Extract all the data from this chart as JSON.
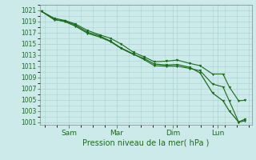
{
  "xlabel": "Pression niveau de la mer( hPa )",
  "bg_color": "#cceaea",
  "grid_color": "#aad4d4",
  "line_color": "#1a6b1a",
  "ylim": [
    1000.5,
    1022.0
  ],
  "yticks": [
    1001,
    1003,
    1005,
    1007,
    1009,
    1011,
    1013,
    1015,
    1017,
    1019,
    1021
  ],
  "xtick_labels": [
    "Sam",
    "Mar",
    "Dim",
    "Lun"
  ],
  "xtick_positions": [
    0.13,
    0.36,
    0.63,
    0.845
  ],
  "line1_x": [
    0.0,
    0.06,
    0.11,
    0.16,
    0.22,
    0.28,
    0.33,
    0.38,
    0.44,
    0.49,
    0.54,
    0.6,
    0.65,
    0.71,
    0.76,
    0.82,
    0.87,
    0.9,
    0.945,
    0.975
  ],
  "line1_y": [
    1020.8,
    1019.4,
    1019.0,
    1018.2,
    1016.9,
    1016.2,
    1015.4,
    1014.2,
    1013.1,
    1012.4,
    1011.4,
    1011.2,
    1011.3,
    1010.8,
    1009.8,
    1006.2,
    1004.8,
    1003.0,
    1001.0,
    1001.5
  ],
  "line2_x": [
    0.0,
    0.06,
    0.11,
    0.16,
    0.22,
    0.28,
    0.33,
    0.38,
    0.44,
    0.49,
    0.54,
    0.6,
    0.65,
    0.71,
    0.76,
    0.82,
    0.87,
    0.9,
    0.945,
    0.975
  ],
  "line2_y": [
    1020.8,
    1019.6,
    1019.2,
    1018.6,
    1017.4,
    1016.6,
    1016.0,
    1015.0,
    1013.5,
    1012.7,
    1011.8,
    1011.9,
    1012.1,
    1011.5,
    1011.1,
    1009.6,
    1009.6,
    1007.3,
    1004.8,
    1004.9
  ],
  "line3_x": [
    0.0,
    0.06,
    0.11,
    0.16,
    0.22,
    0.28,
    0.33,
    0.38,
    0.44,
    0.49,
    0.54,
    0.6,
    0.65,
    0.71,
    0.76,
    0.82,
    0.87,
    0.9,
    0.945,
    0.975
  ],
  "line3_y": [
    1020.8,
    1019.3,
    1019.1,
    1018.4,
    1017.1,
    1016.4,
    1015.5,
    1014.3,
    1013.2,
    1012.2,
    1011.1,
    1011.0,
    1011.0,
    1010.6,
    1010.2,
    1007.8,
    1007.3,
    1004.8,
    1001.0,
    1001.2
  ]
}
